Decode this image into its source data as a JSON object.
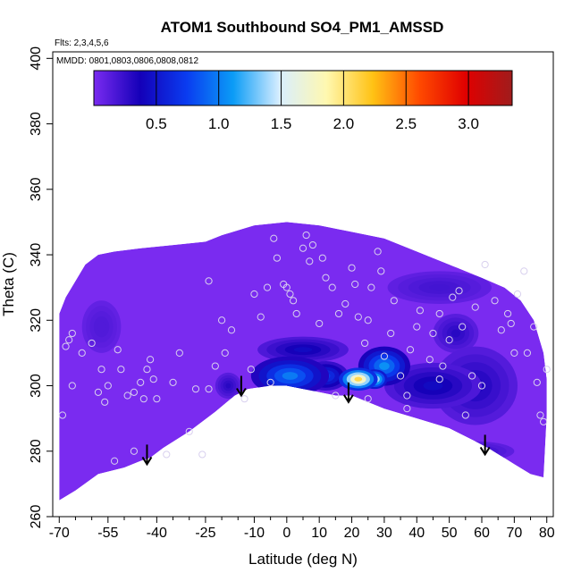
{
  "chart_data": {
    "type": "heatmap",
    "title": "ATOM1 Southbound SO4_PM1_AMSSD",
    "flights_label": "Flts: 2,3,4,5,6",
    "dates_label": "MMDD: 0801,0803,0806,0808,0812",
    "xlabel": "Latitude (deg N)",
    "ylabel": "Theta (C)",
    "xlim": [
      -72,
      82
    ],
    "ylim": [
      260,
      402
    ],
    "x_ticks": [
      -70,
      -55,
      -40,
      -25,
      -10,
      0,
      10,
      20,
      30,
      40,
      50,
      60,
      70,
      80
    ],
    "y_ticks": [
      260,
      280,
      300,
      320,
      340,
      360,
      380,
      400
    ],
    "colorbar": {
      "range": [
        0,
        3.35
      ],
      "ticks": [
        0.5,
        1.0,
        1.5,
        2.0,
        2.5,
        3.0
      ],
      "stops": [
        "#7a2bf0",
        "#1400b8",
        "#0a3cf0",
        "#0b9cf6",
        "#d8eeff",
        "#fff8b0",
        "#ffc214",
        "#ff4a00",
        "#e00000",
        "#a01c1c"
      ]
    },
    "colors": {
      "background_field": "#7a2bf0"
    },
    "domain_top": [
      [
        -70,
        322
      ],
      [
        -68,
        327
      ],
      [
        -65,
        332
      ],
      [
        -62,
        337
      ],
      [
        -58,
        340
      ],
      [
        -53,
        341
      ],
      [
        -45,
        342
      ],
      [
        -35,
        343
      ],
      [
        -25,
        344
      ],
      [
        -20,
        346
      ],
      [
        -10,
        349
      ],
      [
        0,
        350
      ],
      [
        10,
        349
      ],
      [
        20,
        347
      ],
      [
        30,
        345
      ],
      [
        40,
        341
      ],
      [
        50,
        337
      ],
      [
        60,
        333
      ],
      [
        67,
        330
      ],
      [
        72,
        326
      ],
      [
        76,
        320
      ],
      [
        79,
        310
      ],
      [
        80,
        302
      ],
      [
        80,
        291
      ]
    ],
    "domain_bottom": [
      [
        -70,
        265
      ],
      [
        -65,
        268
      ],
      [
        -58,
        273
      ],
      [
        -50,
        275
      ],
      [
        -45,
        277
      ],
      [
        -42,
        278
      ],
      [
        -38,
        281
      ],
      [
        -30,
        286
      ],
      [
        -22,
        292
      ],
      [
        -16,
        297
      ],
      [
        -12,
        299
      ],
      [
        -5,
        300
      ],
      [
        0,
        300
      ],
      [
        10,
        298
      ],
      [
        15,
        297
      ],
      [
        20,
        297
      ],
      [
        30,
        293
      ],
      [
        40,
        290
      ],
      [
        50,
        287
      ],
      [
        58,
        283
      ],
      [
        62,
        281
      ],
      [
        70,
        276
      ],
      [
        75,
        273
      ],
      [
        79,
        272
      ]
    ],
    "hotspots": [
      {
        "x": 22,
        "y": 302,
        "rx": 6,
        "ry": 3.5,
        "value": 2.4
      },
      {
        "x": 27,
        "y": 302,
        "rx": 4,
        "ry": 3,
        "value": 1.9
      },
      {
        "x": 30,
        "y": 306,
        "rx": 8,
        "ry": 6,
        "value": 1.2
      },
      {
        "x": 1,
        "y": 303,
        "rx": 12,
        "ry": 6,
        "value": 1.1
      },
      {
        "x": 12,
        "y": 303,
        "rx": 7,
        "ry": 4.5,
        "value": 0.8
      },
      {
        "x": 5,
        "y": 311,
        "rx": 14,
        "ry": 4,
        "value": 0.45
      },
      {
        "x": 45,
        "y": 300,
        "rx": 15,
        "ry": 7,
        "value": 0.45
      },
      {
        "x": 58,
        "y": 300,
        "rx": 13,
        "ry": 12,
        "value": 0.35
      },
      {
        "x": 52,
        "y": 316,
        "rx": 7,
        "ry": 6,
        "value": 0.3
      },
      {
        "x": -18,
        "y": 300,
        "rx": 4,
        "ry": 4,
        "value": 0.3
      },
      {
        "x": 47,
        "y": 330,
        "rx": 16,
        "ry": 5,
        "value": 0.2
      },
      {
        "x": 32,
        "y": 285,
        "rx": 14,
        "ry": 5,
        "value": 0.35
      },
      {
        "x": 58,
        "y": 280,
        "rx": 12,
        "ry": 3,
        "value": 0.25
      },
      {
        "x": -57,
        "y": 318,
        "rx": 6,
        "ry": 8,
        "value": 0.15
      }
    ],
    "samples": [
      [
        -69,
        291
      ],
      [
        -68,
        312
      ],
      [
        -67,
        314
      ],
      [
        -66,
        316
      ],
      [
        -66,
        300
      ],
      [
        -63,
        310
      ],
      [
        -60,
        313
      ],
      [
        -58,
        298
      ],
      [
        -57,
        305
      ],
      [
        -56,
        295
      ],
      [
        -55,
        300
      ],
      [
        -53,
        277
      ],
      [
        -52,
        311
      ],
      [
        -51,
        305
      ],
      [
        -49,
        297
      ],
      [
        -47,
        298
      ],
      [
        -45,
        301
      ],
      [
        -44,
        296
      ],
      [
        -43,
        305
      ],
      [
        -42,
        308
      ],
      [
        -41,
        302
      ],
      [
        -40,
        296
      ],
      [
        -37,
        279
      ],
      [
        -35,
        301
      ],
      [
        -33,
        310
      ],
      [
        -30,
        286
      ],
      [
        -28,
        299
      ],
      [
        -26,
        279
      ],
      [
        -24,
        299
      ],
      [
        -22,
        306
      ],
      [
        -20,
        320
      ],
      [
        -19,
        310
      ],
      [
        -17,
        317
      ],
      [
        -13,
        296
      ],
      [
        -11,
        305
      ],
      [
        -8,
        321
      ],
      [
        -6,
        330
      ],
      [
        -4,
        345
      ],
      [
        -3,
        339
      ],
      [
        -1,
        331
      ],
      [
        0,
        330
      ],
      [
        1,
        328
      ],
      [
        2,
        326
      ],
      [
        3,
        322
      ],
      [
        5,
        342
      ],
      [
        6,
        346
      ],
      [
        7,
        338
      ],
      [
        8,
        343
      ],
      [
        10,
        319
      ],
      [
        11,
        339
      ],
      [
        12,
        333
      ],
      [
        14,
        330
      ],
      [
        16,
        322
      ],
      [
        18,
        325
      ],
      [
        20,
        336
      ],
      [
        21,
        331
      ],
      [
        22,
        321
      ],
      [
        24,
        313
      ],
      [
        25,
        320
      ],
      [
        26,
        330
      ],
      [
        28,
        341
      ],
      [
        29,
        335
      ],
      [
        30,
        309
      ],
      [
        32,
        316
      ],
      [
        33,
        326
      ],
      [
        35,
        303
      ],
      [
        37,
        297
      ],
      [
        38,
        311
      ],
      [
        40,
        318
      ],
      [
        41,
        323
      ],
      [
        44,
        308
      ],
      [
        45,
        316
      ],
      [
        47,
        322
      ],
      [
        48,
        306
      ],
      [
        50,
        314
      ],
      [
        51,
        327
      ],
      [
        53,
        329
      ],
      [
        54,
        318
      ],
      [
        55,
        291
      ],
      [
        57,
        303
      ],
      [
        58,
        324
      ],
      [
        60,
        300
      ],
      [
        61,
        337
      ],
      [
        64,
        326
      ],
      [
        66,
        317
      ],
      [
        68,
        322
      ],
      [
        69,
        319
      ],
      [
        70,
        310
      ],
      [
        71,
        328
      ],
      [
        73,
        335
      ],
      [
        74,
        310
      ],
      [
        76,
        318
      ],
      [
        77,
        301
      ],
      [
        78,
        291
      ],
      [
        79,
        289
      ],
      [
        80,
        305
      ],
      [
        -47,
        280
      ],
      [
        -24,
        332
      ],
      [
        15,
        297
      ],
      [
        25,
        296
      ],
      [
        37,
        293
      ],
      [
        47,
        302
      ],
      [
        -10,
        328
      ],
      [
        -5,
        301
      ]
    ],
    "arrows": [
      [
        -43,
        276
      ],
      [
        -14,
        297
      ],
      [
        19,
        295
      ],
      [
        61,
        279
      ]
    ]
  }
}
